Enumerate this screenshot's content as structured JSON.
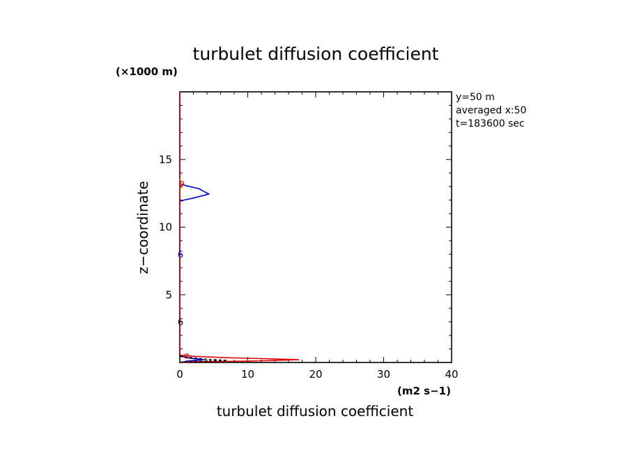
{
  "chart_data": {
    "type": "line",
    "title": "turbulet diffusion coefficient",
    "xlabel": "turbulet diffusion coefficient",
    "xunit": "(m2 s−1)",
    "ylabel": "z−coordinate",
    "yunit": "(×1000 m)",
    "xlim": [
      0,
      40
    ],
    "ylim": [
      0,
      20
    ],
    "x_ticks": [
      0,
      10,
      20,
      30,
      40
    ],
    "y_ticks": [
      5,
      10,
      15
    ],
    "grid": false,
    "info_lines": [
      "y=50 m",
      "averaged  x:50",
      "t=183600 sec"
    ],
    "series": [
      {
        "color": "#0000cc",
        "points": [
          [
            0,
            0
          ],
          [
            1.0,
            0.1
          ],
          [
            3.5,
            0.2
          ],
          [
            1.0,
            0.35
          ],
          [
            0,
            0.5
          ],
          [
            0,
            11.9
          ],
          [
            0.6,
            12.0
          ],
          [
            2.0,
            12.15
          ],
          [
            4.3,
            12.45
          ],
          [
            3.3,
            12.7
          ],
          [
            2.8,
            12.85
          ],
          [
            1.0,
            13.05
          ],
          [
            0.2,
            13.2
          ],
          [
            0,
            13.3
          ],
          [
            0,
            20
          ]
        ]
      },
      {
        "color": "#dd0000",
        "points": [
          [
            0,
            0
          ],
          [
            2.0,
            0.05
          ],
          [
            10.0,
            0.1
          ],
          [
            17.5,
            0.2
          ],
          [
            13.0,
            0.27
          ],
          [
            7.0,
            0.35
          ],
          [
            2.0,
            0.45
          ],
          [
            0,
            0.55
          ],
          [
            0,
            20
          ]
        ]
      },
      {
        "color": "#000000",
        "dashed": true,
        "points": [
          [
            0,
            0.45
          ],
          [
            3.5,
            0.25
          ],
          [
            7.0,
            0.15
          ],
          [
            1.0,
            0.05
          ],
          [
            0,
            0
          ]
        ]
      },
      {
        "color": "#cc6600",
        "dashed": true,
        "points": [
          [
            0,
            12.8
          ],
          [
            0.3,
            13.0
          ],
          [
            0.1,
            13.4
          ],
          [
            0,
            13.6
          ]
        ]
      }
    ],
    "annotations": [
      {
        "text": "6",
        "x": 0.1,
        "y": 8.0,
        "color": "#0000cc"
      },
      {
        "text": "6",
        "x": 0.1,
        "y": 3.0,
        "color": "#000000"
      },
      {
        "text": "o",
        "x": 1.0,
        "y": 0.55,
        "color": "#dd0000"
      },
      {
        "text": "o",
        "x": 0.3,
        "y": 13.3,
        "color": "#dd0000"
      }
    ]
  }
}
